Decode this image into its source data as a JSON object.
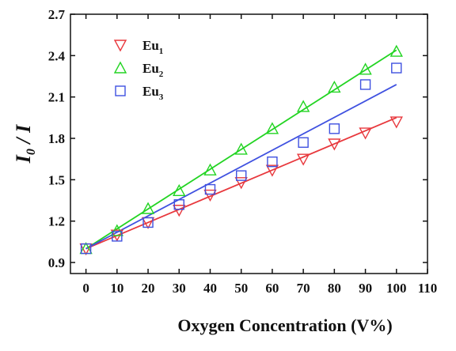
{
  "chart_data": {
    "type": "scatter",
    "xlabel": "Oxygen Concentration (V%)",
    "ylabel": {
      "base": "I",
      "sub": "0",
      "rest": " / I"
    },
    "xlim": [
      -5,
      110
    ],
    "ylim": [
      0.82,
      2.7
    ],
    "xticks": [
      0,
      10,
      20,
      30,
      40,
      50,
      60,
      70,
      80,
      90,
      100,
      110
    ],
    "yticks": [
      0.9,
      1.2,
      1.5,
      1.8,
      2.1,
      2.4,
      2.7
    ],
    "ytick_labels": [
      "0.9",
      "1.2",
      "1.5",
      "1.8",
      "2.1",
      "2.4",
      "2.7"
    ],
    "legend_position": "top-left",
    "grid": false,
    "series": [
      {
        "name": "Eu",
        "name_sub": "1",
        "marker": "triangle-down",
        "color": "#e8383d",
        "x": [
          0,
          10,
          20,
          30,
          40,
          50,
          60,
          70,
          80,
          90,
          100
        ],
        "y": [
          1.0,
          1.1,
          1.19,
          1.28,
          1.39,
          1.48,
          1.57,
          1.65,
          1.76,
          1.84,
          1.92
        ],
        "fit": [
          1.0,
          1.95
        ]
      },
      {
        "name": "Eu",
        "name_sub": "2",
        "marker": "triangle-up",
        "color": "#22d422",
        "x": [
          0,
          10,
          20,
          30,
          40,
          50,
          60,
          70,
          80,
          90,
          100
        ],
        "y": [
          1.0,
          1.13,
          1.29,
          1.42,
          1.57,
          1.72,
          1.87,
          2.03,
          2.17,
          2.3,
          2.43
        ],
        "fit": [
          1.0,
          2.44
        ]
      },
      {
        "name": "Eu",
        "name_sub": "3",
        "marker": "square",
        "color": "#3f51e0",
        "x": [
          0,
          10,
          20,
          30,
          40,
          50,
          60,
          70,
          80,
          90,
          100
        ],
        "y": [
          1.0,
          1.09,
          1.19,
          1.32,
          1.43,
          1.53,
          1.63,
          1.77,
          1.87,
          2.19,
          2.31
        ],
        "fit": [
          1.0,
          2.19
        ]
      }
    ]
  }
}
